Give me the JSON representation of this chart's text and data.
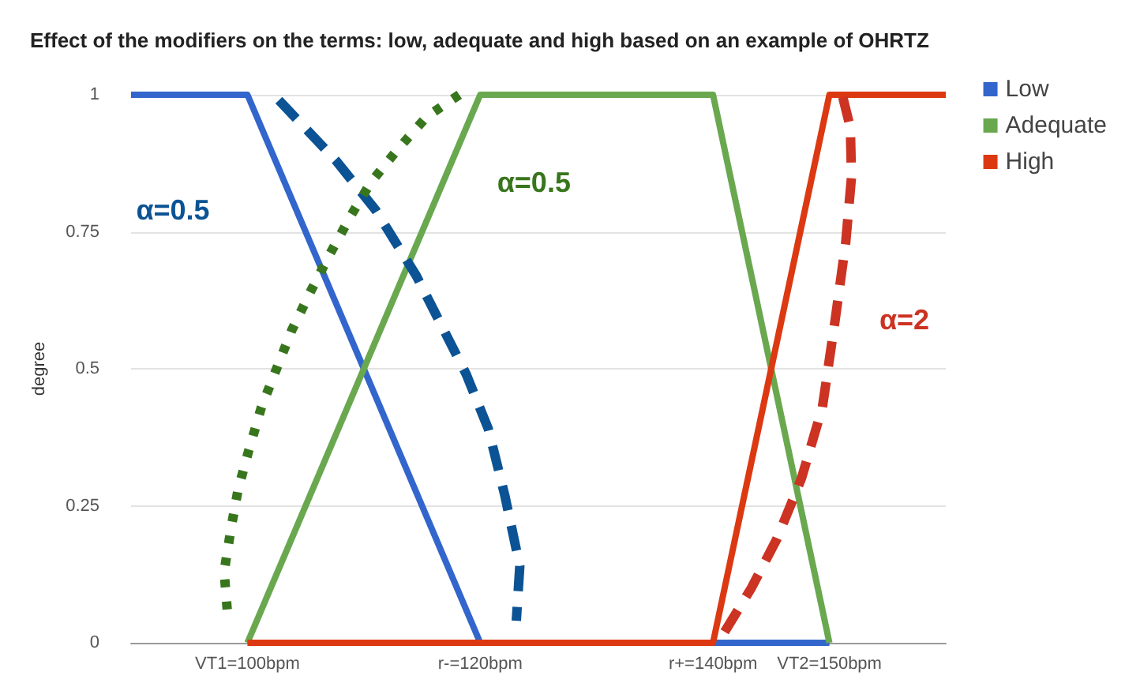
{
  "chart_data": {
    "type": "line",
    "title": "Effect of the modifiers on the terms: low, adequate and high based on an example of OHRTZ",
    "ylabel": "degree",
    "xlim": [
      90,
      160
    ],
    "xticks": [
      {
        "value": 100,
        "label": "VT1=100bpm"
      },
      {
        "value": 120,
        "label": "r-=120bpm"
      },
      {
        "value": 140,
        "label": "r+=140bpm"
      },
      {
        "value": 150,
        "label": "VT2=150bpm"
      }
    ],
    "ylim": [
      0,
      1
    ],
    "yticks": [
      0,
      0.25,
      0.5,
      0.75,
      1
    ],
    "grid": "y",
    "legend": "top right",
    "marker": "none",
    "series": [
      {
        "name": "Low",
        "color": "#3366cc",
        "x": [
          90,
          100,
          120,
          140,
          150
        ],
        "values": [
          1,
          1,
          0,
          0,
          0
        ]
      },
      {
        "name": "Adequate",
        "color": "#6aa84f",
        "x": [
          100,
          120,
          140,
          150
        ],
        "values": [
          0,
          1,
          1,
          0
        ]
      },
      {
        "name": "High",
        "color": "#dc3912",
        "x": [
          100,
          120,
          140,
          150,
          160
        ],
        "values": [
          0,
          0,
          0,
          1,
          1
        ]
      },
      {
        "name": "α=0.5",
        "color": "#0b5394",
        "line_style": "dashed",
        "x": [
          102.7,
          107.6,
          111.0,
          114.5,
          118.8,
          120.7,
          122.1,
          123.4,
          123.1
        ],
        "values": [
          0.99,
          0.88,
          0.79,
          0.67,
          0.49,
          0.39,
          0.27,
          0.14,
          0.04
        ]
      },
      {
        "name": "α=0.5",
        "color": "#38761d",
        "line_style": "dotted",
        "x": [
          118.2,
          115.4,
          112.9,
          110.6,
          108.9,
          107.1,
          105.4,
          103.8,
          102.5,
          101.2,
          100.1,
          99.2,
          98.6,
          98.0,
          98.3
        ],
        "values": [
          1,
          0.96,
          0.9,
          0.84,
          0.78,
          0.71,
          0.64,
          0.57,
          0.5,
          0.43,
          0.35,
          0.28,
          0.21,
          0.13,
          0.05
        ]
      },
      {
        "name": "α=2",
        "color": "#cc3322",
        "line_style": "dashed",
        "x": [
          141.0,
          143.3,
          145.5,
          147.6,
          149.4,
          150.5,
          151.4,
          151.9,
          151.8,
          151.1
        ],
        "values": [
          0.02,
          0.1,
          0.19,
          0.3,
          0.43,
          0.59,
          0.73,
          0.85,
          0.94,
          1
        ]
      }
    ]
  }
}
